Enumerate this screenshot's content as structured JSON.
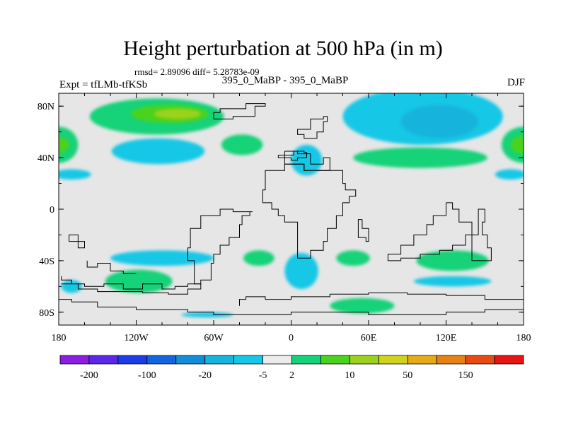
{
  "title": "Height perturbation at 500 hPa (in m)",
  "stats": "rmsd= 2.89096 diff= 5.28783e-09",
  "left_label": "Expt = tfLMb-tfKSb",
  "center_label": "395_0_MaBP - 395_0_MaBP",
  "right_label": "DJF",
  "chart_data": {
    "type": "contour-map",
    "title": "Height perturbation at 500 hPa (in m)",
    "xlim": [
      -180,
      180
    ],
    "ylim": [
      -90,
      90
    ],
    "x_ticks": [
      {
        "value": -180,
        "label": "180"
      },
      {
        "value": -120,
        "label": "120W"
      },
      {
        "value": -60,
        "label": "60W"
      },
      {
        "value": 0,
        "label": "0"
      },
      {
        "value": 60,
        "label": "60E"
      },
      {
        "value": 120,
        "label": "120E"
      },
      {
        "value": 180,
        "label": "180"
      }
    ],
    "y_ticks": [
      {
        "value": 80,
        "label": "80N"
      },
      {
        "value": 40,
        "label": "40N"
      },
      {
        "value": 0,
        "label": "0"
      },
      {
        "value": -40,
        "label": "40S"
      },
      {
        "value": -80,
        "label": "80S"
      }
    ],
    "background_color": "#e6e6e6",
    "colorbar": {
      "colors": [
        "#8b1ee0",
        "#5a28e6",
        "#1e3ce6",
        "#1464dc",
        "#148cd7",
        "#14b4dc",
        "#14c8e6",
        "#ebebeb",
        "#14d278",
        "#4bd21e",
        "#9bd21e",
        "#d2d21e",
        "#e6aa14",
        "#e68214",
        "#e64b14",
        "#e61414"
      ],
      "labels": [
        {
          "boundary": 1,
          "text": "-200"
        },
        {
          "boundary": 3,
          "text": "-100"
        },
        {
          "boundary": 5,
          "text": "-20"
        },
        {
          "boundary": 7,
          "text": "-5"
        },
        {
          "boundary": 8,
          "text": "2"
        },
        {
          "boundary": 10,
          "text": "10"
        },
        {
          "boundary": 12,
          "text": "50"
        },
        {
          "boundary": 14,
          "text": "150"
        }
      ]
    },
    "anomaly_regions": [
      {
        "name": "nh-green-pacific",
        "level": 8,
        "lon": -104,
        "lat": 72,
        "rlon": 52,
        "rlat": 14
      },
      {
        "name": "nh-lime-pacific",
        "level": 9,
        "lon": -94,
        "lat": 74,
        "rlon": 30,
        "rlat": 7
      },
      {
        "name": "nh-yellow-pacific",
        "level": 10,
        "lon": -88,
        "lat": 74,
        "rlon": 18,
        "rlat": 4
      },
      {
        "name": "nh-cyan-atlantic",
        "level": 6,
        "lon": 102,
        "lat": 72,
        "rlon": 62,
        "rlat": 22
      },
      {
        "name": "nh-blue-atlantic",
        "level": 5,
        "lon": 115,
        "lat": 68,
        "rlon": 30,
        "rlat": 13
      },
      {
        "name": "nh-green-west",
        "level": 8,
        "lon": -180,
        "lat": 50,
        "rlon": 15,
        "rlat": 14
      },
      {
        "name": "nh-lime-west",
        "level": 9,
        "lon": -180,
        "lat": 50,
        "rlon": 8,
        "rlat": 6
      },
      {
        "name": "nh-green-east",
        "level": 8,
        "lon": 180,
        "lat": 50,
        "rlon": 17,
        "rlat": 14
      },
      {
        "name": "nh-lime-east",
        "level": 9,
        "lon": 180,
        "lat": 50,
        "rlon": 10,
        "rlat": 7
      },
      {
        "name": "nh-cyan-central",
        "level": 6,
        "lon": -103,
        "lat": 45,
        "rlon": 36,
        "rlat": 10
      },
      {
        "name": "nh-cyan-west-strip",
        "level": 6,
        "lon": -170,
        "lat": 27,
        "rlon": 15,
        "rlat": 4
      },
      {
        "name": "nh-green-atlantic-mid",
        "level": 8,
        "lon": -38,
        "lat": 50,
        "rlon": 16,
        "rlat": 8
      },
      {
        "name": "nh-cyan-europe",
        "level": 6,
        "lon": 12,
        "lat": 38,
        "rlon": 12,
        "rlat": 12
      },
      {
        "name": "nh-green-asia",
        "level": 8,
        "lon": 100,
        "lat": 40,
        "rlon": 52,
        "rlat": 8
      },
      {
        "name": "nh-cyan-east-strip",
        "level": 6,
        "lon": 170,
        "lat": 27,
        "rlon": 12,
        "rlat": 4
      },
      {
        "name": "sh-cyan-pacific",
        "level": 6,
        "lon": -100,
        "lat": -38,
        "rlon": 40,
        "rlat": 6
      },
      {
        "name": "sh-green-pacific",
        "level": 8,
        "lon": -118,
        "lat": -56,
        "rlon": 26,
        "rlat": 9
      },
      {
        "name": "sh-cyan-west",
        "level": 6,
        "lon": -170,
        "lat": -60,
        "rlon": 8,
        "rlat": 5
      },
      {
        "name": "sh-cyan-atlantic",
        "level": 6,
        "lon": 8,
        "lat": -48,
        "rlon": 13,
        "rlat": 14
      },
      {
        "name": "sh-green-atlantic",
        "level": 8,
        "lon": -25,
        "lat": -38,
        "rlon": 12,
        "rlat": 6
      },
      {
        "name": "sh-green-africa",
        "level": 8,
        "lon": 48,
        "lat": -38,
        "rlon": 13,
        "rlat": 6
      },
      {
        "name": "sh-green-south",
        "level": 8,
        "lon": 55,
        "lat": -75,
        "rlon": 25,
        "rlat": 6
      },
      {
        "name": "sh-green-indian",
        "level": 8,
        "lon": 125,
        "lat": -40,
        "rlon": 28,
        "rlat": 8
      },
      {
        "name": "sh-cyan-indian",
        "level": 6,
        "lon": 125,
        "lat": -56,
        "rlon": 30,
        "rlat": 4
      },
      {
        "name": "sh-cyan-drake",
        "level": 6,
        "lon": -65,
        "lat": -82,
        "rlon": 20,
        "rlat": 2
      }
    ],
    "land_outlines": [
      [
        [
          -5,
          45
        ],
        [
          5,
          45
        ],
        [
          5,
          43
        ],
        [
          15,
          43
        ],
        [
          15,
          35
        ],
        [
          25,
          35
        ],
        [
          25,
          40
        ],
        [
          30,
          40
        ],
        [
          30,
          35
        ],
        [
          20,
          30
        ],
        [
          10,
          30
        ],
        [
          5,
          35
        ],
        [
          -5,
          35
        ],
        [
          -5,
          45
        ]
      ],
      [
        [
          -5,
          35
        ],
        [
          -20,
          30
        ],
        [
          -22,
          15
        ],
        [
          -15,
          5
        ],
        [
          -10,
          0
        ],
        [
          -5,
          -5
        ],
        [
          5,
          -10
        ],
        [
          5,
          -25
        ],
        [
          15,
          -38
        ],
        [
          25,
          -32
        ],
        [
          28,
          -25
        ],
        [
          35,
          -15
        ],
        [
          40,
          -5
        ],
        [
          45,
          5
        ],
        [
          50,
          10
        ],
        [
          42,
          15
        ],
        [
          40,
          20
        ],
        [
          30,
          30
        ],
        [
          20,
          30
        ],
        [
          10,
          30
        ],
        [
          5,
          35
        ],
        [
          -5,
          35
        ]
      ],
      [
        [
          55,
          -8
        ],
        [
          60,
          -15
        ],
        [
          58,
          -25
        ],
        [
          52,
          -22
        ],
        [
          55,
          -8
        ]
      ],
      [
        [
          -30,
          -2
        ],
        [
          -45,
          -2
        ],
        [
          -55,
          0
        ],
        [
          -70,
          -5
        ],
        [
          -78,
          -15
        ],
        [
          -80,
          -30
        ],
        [
          -75,
          -40
        ],
        [
          -75,
          -55
        ],
        [
          -70,
          -58
        ],
        [
          -62,
          -55
        ],
        [
          -60,
          -42
        ],
        [
          -55,
          -35
        ],
        [
          -48,
          -28
        ],
        [
          -40,
          -22
        ],
        [
          -38,
          -12
        ],
        [
          -32,
          -5
        ],
        [
          -30,
          -2
        ]
      ],
      [
        [
          120,
          5
        ],
        [
          110,
          -5
        ],
        [
          105,
          -12
        ],
        [
          95,
          -20
        ],
        [
          85,
          -28
        ],
        [
          75,
          -35
        ],
        [
          85,
          -40
        ],
        [
          100,
          -38
        ],
        [
          115,
          -35
        ],
        [
          125,
          -32
        ],
        [
          135,
          -28
        ],
        [
          140,
          -20
        ],
        [
          130,
          -10
        ],
        [
          125,
          0
        ],
        [
          120,
          5
        ]
      ],
      [
        [
          150,
          0
        ],
        [
          148,
          -10
        ],
        [
          152,
          -20
        ],
        [
          155,
          -30
        ],
        [
          150,
          -40
        ],
        [
          140,
          -40
        ],
        [
          140,
          -30
        ],
        [
          145,
          -20
        ],
        [
          145,
          -5
        ],
        [
          150,
          0
        ]
      ],
      [
        [
          -40,
          -75
        ],
        [
          -35,
          -70
        ],
        [
          -20,
          -68
        ],
        [
          0,
          -70
        ],
        [
          30,
          -68
        ],
        [
          60,
          -66
        ],
        [
          90,
          -65
        ],
        [
          120,
          -66
        ],
        [
          150,
          -67
        ],
        [
          180,
          -70
        ],
        [
          180,
          -80
        ],
        [
          150,
          -78
        ],
        [
          120,
          -80
        ],
        [
          90,
          -82
        ],
        [
          60,
          -82
        ],
        [
          30,
          -80
        ],
        [
          0,
          -80
        ],
        [
          -20,
          -82
        ],
        [
          -40,
          -82
        ],
        [
          -60,
          -82
        ],
        [
          -80,
          -80
        ],
        [
          -100,
          -78
        ],
        [
          -120,
          -78
        ],
        [
          -150,
          -76
        ],
        [
          -170,
          -72
        ],
        [
          -180,
          -70
        ]
      ],
      [
        [
          -178,
          -52
        ],
        [
          -170,
          -55
        ],
        [
          -160,
          -58
        ],
        [
          -145,
          -60
        ],
        [
          -130,
          -58
        ],
        [
          -115,
          -62
        ],
        [
          -100,
          -58
        ],
        [
          -90,
          -62
        ],
        [
          -80,
          -60
        ],
        [
          -70,
          -58
        ],
        [
          -80,
          -62
        ],
        [
          -95,
          -66
        ],
        [
          -115,
          -65
        ],
        [
          -135,
          -64
        ],
        [
          -150,
          -64
        ],
        [
          -165,
          -62
        ],
        [
          -178,
          -58
        ]
      ],
      [
        [
          -10,
          42
        ],
        [
          0,
          40
        ],
        [
          5,
          38
        ],
        [
          12,
          40
        ],
        [
          10,
          44
        ],
        [
          2,
          45
        ],
        [
          -10,
          42
        ]
      ],
      [
        [
          25,
          72
        ],
        [
          15,
          70
        ],
        [
          5,
          62
        ],
        [
          10,
          58
        ],
        [
          20,
          55
        ],
        [
          25,
          60
        ],
        [
          28,
          68
        ],
        [
          25,
          72
        ]
      ],
      [
        [
          -28,
          72
        ],
        [
          -20,
          80
        ],
        [
          -35,
          82
        ],
        [
          -55,
          78
        ],
        [
          -60,
          75
        ],
        [
          -45,
          70
        ],
        [
          -28,
          72
        ]
      ],
      [
        [
          -158,
          -40
        ],
        [
          -150,
          -45
        ],
        [
          -140,
          -42
        ],
        [
          -130,
          -48
        ],
        [
          -120,
          -50
        ]
      ],
      [
        [
          -172,
          -25
        ],
        [
          -165,
          -20
        ],
        [
          -160,
          -25
        ],
        [
          -165,
          -30
        ],
        [
          -172,
          -25
        ]
      ]
    ]
  }
}
